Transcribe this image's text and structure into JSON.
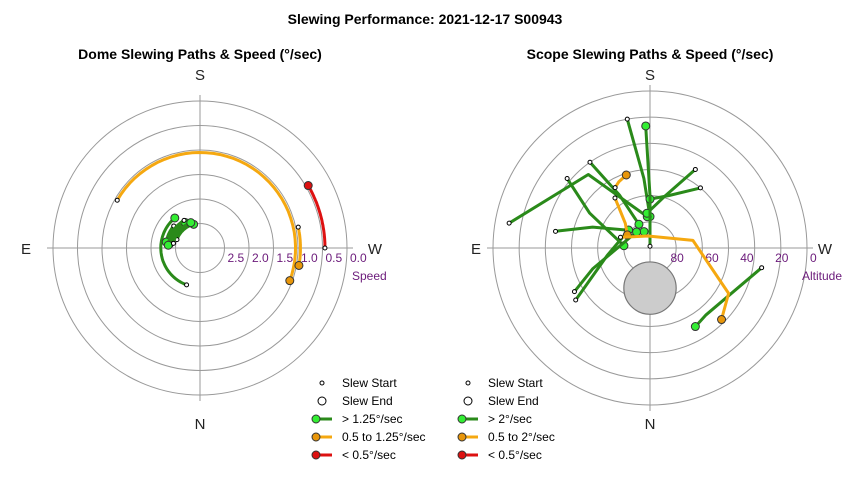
{
  "figure_title": "Slewing Performance: 2021-12-17 S00943",
  "colors": {
    "fast": "#2a8a1a",
    "fast_marker": "#33ee33",
    "medium": "#f5a810",
    "medium_marker": "#e8960a",
    "slow": "#dd1111",
    "slow_marker": "#dd1111",
    "grid": "#999999",
    "label": "#6b1a7a",
    "moon_fill": "#cccccc"
  },
  "chart_data": [
    {
      "type": "polar",
      "title": "Dome Slewing Paths & Speed (°/sec)",
      "compass": {
        "top": "S",
        "bottom": "N",
        "left": "E",
        "right": "W"
      },
      "radial_axis": {
        "name": "Speed",
        "ticks": [
          "0.0",
          "0.5",
          "1.0",
          "1.5",
          "2.0",
          "2.5"
        ],
        "range": [
          0,
          3
        ],
        "inverted": true
      },
      "legend": [
        {
          "label": "Slew Start",
          "kind": "start"
        },
        {
          "label": "Slew End",
          "kind": "end"
        },
        {
          "label": "> 1.25°/sec",
          "kind": "fast"
        },
        {
          "label": "0.5 to 1.25°/sec",
          "kind": "medium"
        },
        {
          "label": "< 0.5°/sec",
          "kind": "slow"
        }
      ],
      "paths": [
        {
          "speed_class": "medium",
          "r": 1.05,
          "az_start": 120,
          "az_end": 290,
          "start_speed": 0.95,
          "end_speed": 1.02
        },
        {
          "speed_class": "medium",
          "r": 0.95,
          "az_start": 258,
          "az_end": 280,
          "start_speed": 1.05,
          "end_speed": 1.05
        },
        {
          "speed_class": "slow",
          "r": 0.45,
          "az_start": 270,
          "az_end": 240,
          "start_speed": 0.3,
          "end_speed": 0.35
        },
        {
          "speed_class": "fast",
          "r": 2.2,
          "az_start": 20,
          "az_end": 140,
          "start_speed": 1.9,
          "end_speed": 2.0
        },
        {
          "speed_class": "fast",
          "r": 2.3,
          "az_start": 130,
          "az_end": 100,
          "start_speed": 2.3,
          "end_speed": 2.4
        },
        {
          "speed_class": "fast",
          "r": 2.4,
          "az_start": 95,
          "az_end": 150,
          "start_speed": 2.5,
          "end_speed": 2.4
        },
        {
          "speed_class": "fast",
          "r": 2.5,
          "az_start": 110,
          "az_end": 165,
          "start_speed": 2.5,
          "end_speed": 2.6
        },
        {
          "speed_class": "fast",
          "r": 2.35,
          "az_start": 150,
          "az_end": 95,
          "start_speed": 2.4,
          "end_speed": 2.3
        },
        {
          "speed_class": "fast",
          "r": 2.45,
          "az_start": 100,
          "az_end": 160,
          "start_speed": 2.3,
          "end_speed": 2.4
        }
      ]
    },
    {
      "type": "polar",
      "title": "Scope Slewing Paths & Speed (°/sec)",
      "compass": {
        "top": "S",
        "bottom": "N",
        "left": "E",
        "right": "W"
      },
      "radial_axis": {
        "name": "Altitude",
        "ticks": [
          "0",
          "20",
          "40",
          "60",
          "80"
        ],
        "range": [
          0,
          90
        ],
        "inverted": true
      },
      "legend": [
        {
          "label": "Slew Start",
          "kind": "start"
        },
        {
          "label": "Slew End",
          "kind": "end"
        },
        {
          "label": "> 2°/sec",
          "kind": "fast"
        },
        {
          "label": "0.5 to 2°/sec",
          "kind": "medium"
        },
        {
          "label": "< 0.5°/sec",
          "kind": "slow"
        }
      ],
      "moon": {
        "alt": 67,
        "az": 0,
        "radius_deg": 15
      },
      "paths": [
        {
          "speed_class": "fast",
          "points": [
            [
              170,
              15
            ],
            [
              175,
              50
            ],
            [
              180,
              72
            ]
          ]
        },
        {
          "speed_class": "fast",
          "points": [
            [
              130,
              28
            ],
            [
              120,
              50
            ],
            [
              95,
              75
            ]
          ]
        },
        {
          "speed_class": "fast",
          "points": [
            [
              100,
              8
            ],
            [
              140,
              35
            ],
            [
              175,
              72
            ]
          ]
        },
        {
          "speed_class": "fast",
          "points": [
            [
              145,
              30
            ],
            [
              150,
              55
            ],
            [
              155,
              75
            ]
          ]
        },
        {
          "speed_class": "fast",
          "points": [
            [
              210,
              38
            ],
            [
              195,
              60
            ],
            [
              175,
              70
            ]
          ]
        },
        {
          "speed_class": "fast",
          "points": [
            [
              220,
              45
            ],
            [
              200,
              58
            ],
            [
              180,
              62
            ]
          ]
        },
        {
          "speed_class": "fast",
          "points": [
            [
              100,
              35
            ],
            [
              110,
              55
            ],
            [
              160,
              80
            ]
          ]
        },
        {
          "speed_class": "fast",
          "points": [
            [
              60,
              40
            ],
            [
              70,
              55
            ],
            [
              140,
              78
            ]
          ]
        },
        {
          "speed_class": "fast",
          "points": [
            [
              55,
              38
            ],
            [
              80,
              65
            ],
            [
              130,
              74
            ]
          ]
        },
        {
          "speed_class": "fast",
          "points": [
            [
              280,
              25
            ],
            [
              320,
              40
            ],
            [
              330,
              38
            ]
          ]
        },
        {
          "speed_class": "fast",
          "points": [
            [
              180,
              89
            ],
            [
              180,
              80
            ],
            [
              180,
              60
            ],
            [
              178,
              20
            ]
          ]
        },
        {
          "speed_class": "medium",
          "points": [
            [
              145,
              55
            ],
            [
              135,
              70
            ],
            [
              120,
              75
            ]
          ]
        },
        {
          "speed_class": "medium",
          "points": [
            [
              110,
              72
            ],
            [
              170,
              83
            ],
            [
              260,
              65
            ],
            [
              300,
              38
            ],
            [
              315,
              32
            ]
          ]
        },
        {
          "speed_class": "medium",
          "points": [
            [
              150,
              50
            ],
            [
              155,
              48
            ],
            [
              162,
              46
            ]
          ]
        }
      ]
    }
  ]
}
